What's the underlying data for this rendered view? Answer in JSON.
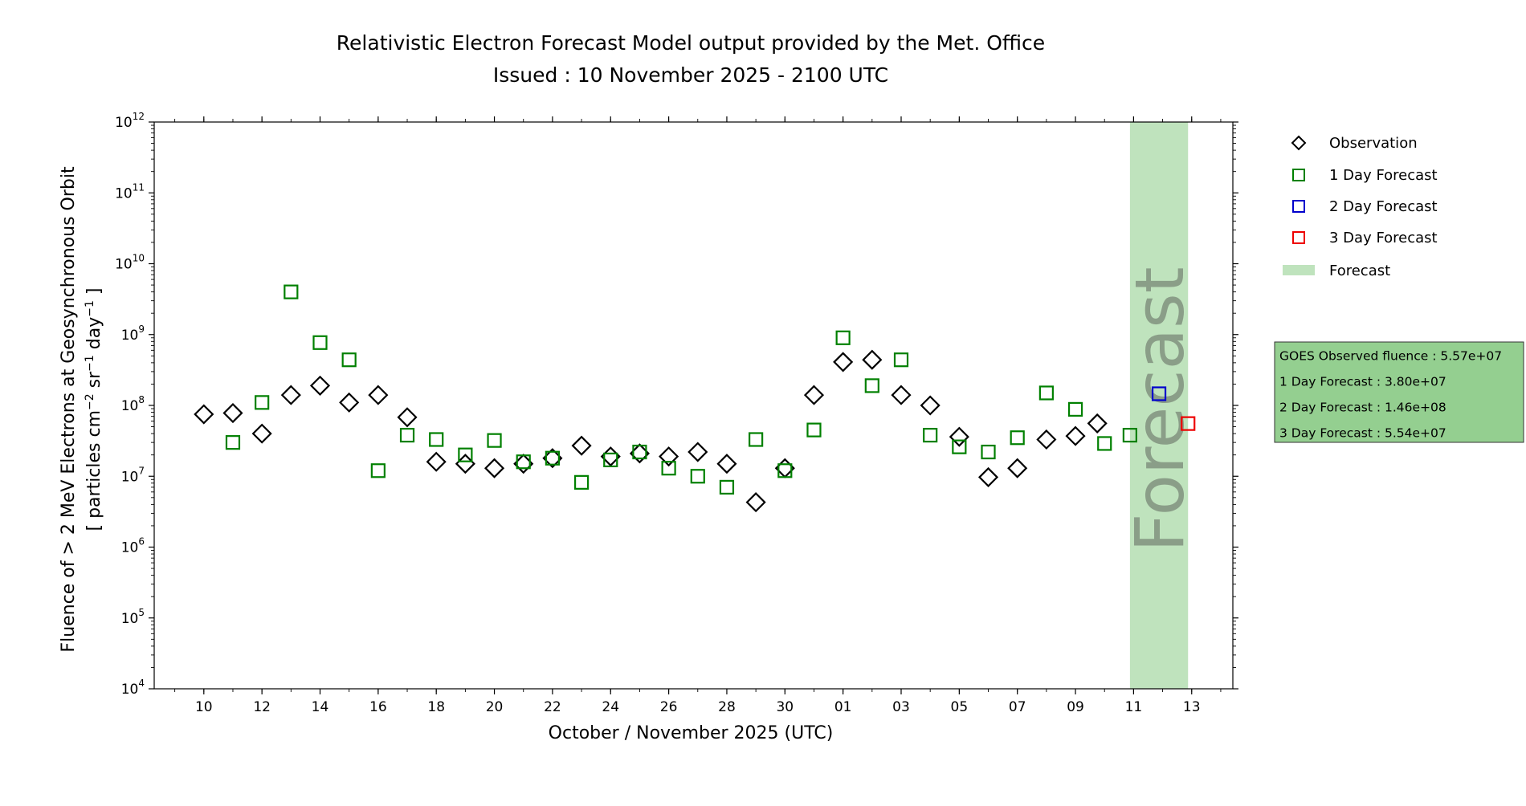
{
  "title": {
    "line1": "Relativistic Electron Forecast Model output provided by the Met. Office",
    "line2": "Issued : 10 November 2025 - 2100 UTC"
  },
  "info_box": {
    "goes": "GOES Observed fluence : 5.57e+07",
    "day1": "1 Day Forecast : 3.80e+07",
    "day2": "2 Day Forecast : 1.46e+08",
    "day3": "3 Day Forecast : 5.54e+07"
  },
  "forecast_label": "Forecast",
  "colors": {
    "observation": "#000000",
    "forecast_1day": "#008000",
    "forecast_2day": "#0000cc",
    "forecast_3day": "#ee0000",
    "forecast_band": "#bfe3bd",
    "info_box_bg": "#94cf90"
  },
  "chart_data": {
    "type": "scatter",
    "xlabel": "October / November 2025 (UTC)",
    "ylabel_line1": "Fluence of > 2 MeV Electrons at Geosynchronous Orbit",
    "ylabel_line2": "[ particles cm−2 sr−1 day−1 ]",
    "y_scale": "log",
    "ylim": [
      10000,
      1000000000000
    ],
    "y_ticks": [
      {
        "base": "10",
        "exp": "4"
      },
      {
        "base": "10",
        "exp": "5"
      },
      {
        "base": "10",
        "exp": "6"
      },
      {
        "base": "10",
        "exp": "7"
      },
      {
        "base": "10",
        "exp": "8"
      },
      {
        "base": "10",
        "exp": "9"
      },
      {
        "base": "10",
        "exp": "10"
      },
      {
        "base": "10",
        "exp": "11"
      },
      {
        "base": "10",
        "exp": "12"
      }
    ],
    "xlim": [
      "2025-10-08 07:00",
      "2025-11-14 10:00"
    ],
    "x_ticks": [
      {
        "date": "2025-10-10",
        "label": "10"
      },
      {
        "date": "2025-10-12",
        "label": "12"
      },
      {
        "date": "2025-10-14",
        "label": "14"
      },
      {
        "date": "2025-10-16",
        "label": "16"
      },
      {
        "date": "2025-10-18",
        "label": "18"
      },
      {
        "date": "2025-10-20",
        "label": "20"
      },
      {
        "date": "2025-10-22",
        "label": "22"
      },
      {
        "date": "2025-10-24",
        "label": "24"
      },
      {
        "date": "2025-10-26",
        "label": "26"
      },
      {
        "date": "2025-10-28",
        "label": "28"
      },
      {
        "date": "2025-10-30",
        "label": "30"
      },
      {
        "date": "2025-11-01",
        "label": "01"
      },
      {
        "date": "2025-11-03",
        "label": "03"
      },
      {
        "date": "2025-11-05",
        "label": "05"
      },
      {
        "date": "2025-11-07",
        "label": "07"
      },
      {
        "date": "2025-11-09",
        "label": "09"
      },
      {
        "date": "2025-11-11",
        "label": "11"
      },
      {
        "date": "2025-11-13",
        "label": "13"
      }
    ],
    "forecast_band": [
      "2025-11-10 21:00",
      "2025-11-12 21:00"
    ],
    "legend": {
      "position": "right",
      "entries": [
        "Observation",
        "1 Day Forecast",
        "2 Day Forecast",
        "3 Day Forecast",
        "Forecast"
      ]
    },
    "series": [
      {
        "name": "Observation",
        "marker": "diamond",
        "points": [
          {
            "x": "2025-10-10",
            "y": 75000000
          },
          {
            "x": "2025-10-11",
            "y": 78000000
          },
          {
            "x": "2025-10-12",
            "y": 40000000
          },
          {
            "x": "2025-10-13",
            "y": 140000000
          },
          {
            "x": "2025-10-14",
            "y": 190000000
          },
          {
            "x": "2025-10-15",
            "y": 110000000
          },
          {
            "x": "2025-10-16",
            "y": 140000000
          },
          {
            "x": "2025-10-17",
            "y": 68000000
          },
          {
            "x": "2025-10-18",
            "y": 16000000
          },
          {
            "x": "2025-10-19",
            "y": 15000000
          },
          {
            "x": "2025-10-20",
            "y": 13000000
          },
          {
            "x": "2025-10-21",
            "y": 15000000
          },
          {
            "x": "2025-10-22",
            "y": 18000000
          },
          {
            "x": "2025-10-23",
            "y": 27000000
          },
          {
            "x": "2025-10-24",
            "y": 19000000
          },
          {
            "x": "2025-10-25",
            "y": 21000000
          },
          {
            "x": "2025-10-26",
            "y": 19000000
          },
          {
            "x": "2025-10-27",
            "y": 22000000
          },
          {
            "x": "2025-10-28",
            "y": 15000000
          },
          {
            "x": "2025-10-29",
            "y": 4300000
          },
          {
            "x": "2025-10-30",
            "y": 13000000
          },
          {
            "x": "2025-10-31",
            "y": 140000000
          },
          {
            "x": "2025-11-01",
            "y": 410000000
          },
          {
            "x": "2025-11-02",
            "y": 440000000
          },
          {
            "x": "2025-11-03",
            "y": 140000000
          },
          {
            "x": "2025-11-04",
            "y": 100000000
          },
          {
            "x": "2025-11-05",
            "y": 36000000
          },
          {
            "x": "2025-11-06",
            "y": 9700000
          },
          {
            "x": "2025-11-07",
            "y": 13000000
          },
          {
            "x": "2025-11-08",
            "y": 33000000
          },
          {
            "x": "2025-11-09",
            "y": 37000000
          },
          {
            "x": "2025-11-09 18:00",
            "y": 55700000
          }
        ]
      },
      {
        "name": "1 Day Forecast",
        "marker": "square",
        "points": [
          {
            "x": "2025-10-11",
            "y": 30000000
          },
          {
            "x": "2025-10-12",
            "y": 110000000
          },
          {
            "x": "2025-10-13",
            "y": 4000000000
          },
          {
            "x": "2025-10-14",
            "y": 770000000
          },
          {
            "x": "2025-10-15",
            "y": 440000000
          },
          {
            "x": "2025-10-16",
            "y": 12000000
          },
          {
            "x": "2025-10-17",
            "y": 38000000
          },
          {
            "x": "2025-10-18",
            "y": 33000000
          },
          {
            "x": "2025-10-19",
            "y": 20000000
          },
          {
            "x": "2025-10-20",
            "y": 32000000
          },
          {
            "x": "2025-10-21",
            "y": 16000000
          },
          {
            "x": "2025-10-22",
            "y": 18000000
          },
          {
            "x": "2025-10-23",
            "y": 8200000
          },
          {
            "x": "2025-10-24",
            "y": 17000000
          },
          {
            "x": "2025-10-25",
            "y": 22000000
          },
          {
            "x": "2025-10-26",
            "y": 13000000
          },
          {
            "x": "2025-10-27",
            "y": 10000000
          },
          {
            "x": "2025-10-28",
            "y": 7000000
          },
          {
            "x": "2025-10-29",
            "y": 33000000
          },
          {
            "x": "2025-10-30",
            "y": 12000000
          },
          {
            "x": "2025-10-31",
            "y": 45000000
          },
          {
            "x": "2025-11-01",
            "y": 900000000
          },
          {
            "x": "2025-11-02",
            "y": 190000000
          },
          {
            "x": "2025-11-03",
            "y": 440000000
          },
          {
            "x": "2025-11-04",
            "y": 38000000
          },
          {
            "x": "2025-11-05",
            "y": 26000000
          },
          {
            "x": "2025-11-06",
            "y": 22000000
          },
          {
            "x": "2025-11-07",
            "y": 35000000
          },
          {
            "x": "2025-11-08",
            "y": 150000000
          },
          {
            "x": "2025-11-09",
            "y": 88000000
          },
          {
            "x": "2025-11-10",
            "y": 29000000
          },
          {
            "x": "2025-11-10 21:00",
            "y": 38000000
          }
        ]
      },
      {
        "name": "2 Day Forecast",
        "marker": "square",
        "points": [
          {
            "x": "2025-11-11 21:00",
            "y": 146000000
          }
        ]
      },
      {
        "name": "3 Day Forecast",
        "marker": "square",
        "points": [
          {
            "x": "2025-11-12 21:00",
            "y": 55400000
          }
        ]
      }
    ]
  }
}
